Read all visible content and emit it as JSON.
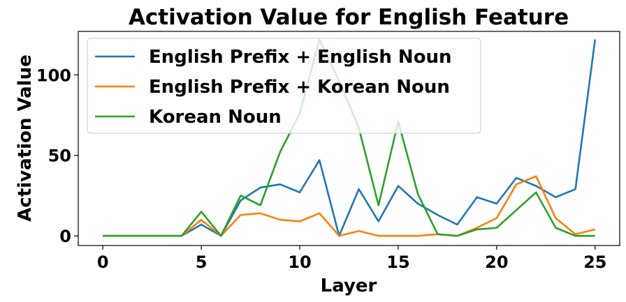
{
  "chart_data": {
    "type": "line",
    "title": "Activation Value for English Feature",
    "xlabel": "Layer",
    "ylabel": "Activation Value",
    "xlim": [
      -1.25,
      26.25
    ],
    "ylim": [
      -6,
      127
    ],
    "xticks": [
      0,
      5,
      10,
      15,
      20,
      25
    ],
    "yticks": [
      0,
      50,
      100
    ],
    "grid": false,
    "legend_position": "upper-left",
    "x": [
      0,
      1,
      2,
      3,
      4,
      5,
      6,
      7,
      8,
      9,
      10,
      11,
      12,
      13,
      14,
      15,
      16,
      17,
      18,
      19,
      20,
      21,
      22,
      23,
      24,
      25
    ],
    "series": [
      {
        "name": "English Prefix + English Noun",
        "color": "#1f77b4",
        "values": [
          0,
          0,
          0,
          0,
          0,
          7,
          0,
          22,
          30,
          32,
          27,
          47,
          0,
          29,
          9,
          31,
          20,
          13,
          7,
          24,
          20,
          36,
          31,
          24,
          29,
          122
        ]
      },
      {
        "name": "English Prefix + Korean Noun",
        "color": "#ff7f0e",
        "values": [
          0,
          0,
          0,
          0,
          0,
          10,
          0,
          13,
          14,
          10,
          9,
          14,
          0,
          3,
          0,
          0,
          0,
          1,
          0,
          5,
          11,
          32,
          37,
          11,
          1,
          4
        ]
      },
      {
        "name": "Korean Noun",
        "color": "#2ca02c",
        "values": [
          0,
          0,
          0,
          0,
          0,
          15,
          0,
          25,
          19,
          52,
          76,
          122,
          96,
          67,
          19,
          71,
          26,
          1,
          0,
          4,
          5,
          16,
          27,
          5,
          0,
          0
        ]
      }
    ]
  }
}
